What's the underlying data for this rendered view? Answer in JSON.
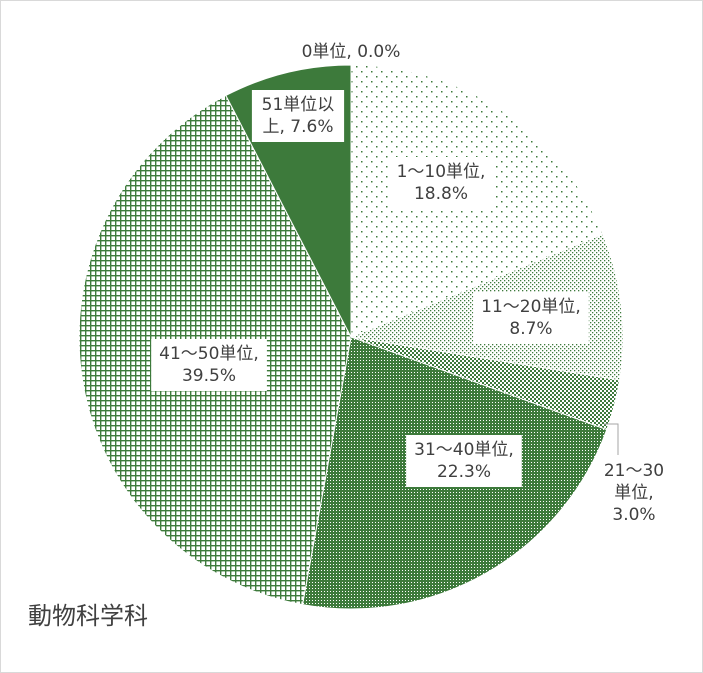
{
  "chart_data": {
    "type": "pie",
    "title": "動物科学科",
    "slices": [
      {
        "label": "0単位",
        "value": 0.0,
        "text": [
          "0単位, 0.0%"
        ],
        "pattern": "none",
        "color": "#3d7a3b"
      },
      {
        "label": "1～10単位",
        "value": 18.8,
        "text": [
          "1～10単位,",
          "18.8%"
        ],
        "pattern": "sparse-dots",
        "color": "#3d7a3b"
      },
      {
        "label": "11～20単位",
        "value": 8.7,
        "text": [
          "11～20単位,",
          "8.7%"
        ],
        "pattern": "fine-dots",
        "color": "#3d7a3b"
      },
      {
        "label": "21～30単位",
        "value": 3.0,
        "text": [
          "21～30",
          "単位,",
          "3.0%"
        ],
        "pattern": "checker",
        "color": "#3d7a3b"
      },
      {
        "label": "31～40単位",
        "value": 22.3,
        "text": [
          "31～40単位,",
          "22.3%"
        ],
        "pattern": "dense-hatch",
        "color": "#3d7a3b"
      },
      {
        "label": "41～50単位",
        "value": 39.5,
        "text": [
          "41～50単位,",
          "39.5%"
        ],
        "pattern": "grid",
        "color": "#3d7a3b"
      },
      {
        "label": "51単位以上",
        "value": 7.6,
        "text": [
          "51単位以",
          "上, 7.6%"
        ],
        "pattern": "solid",
        "color": "#3d7a3b"
      }
    ]
  }
}
